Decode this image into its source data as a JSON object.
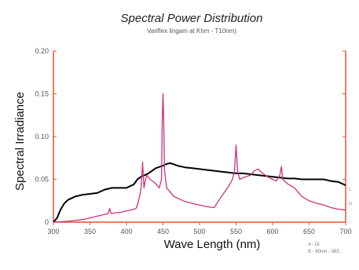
{
  "chart_data": {
    "type": "line",
    "title": "Spectral Power Distribution",
    "subtitle": "Variflex lingam at Khm - T10nm)",
    "xlabel": "Wave Length (nm)",
    "ylabel": "Spectral Irradiance",
    "xlim": [
      300,
      700
    ],
    "ylim": [
      0,
      0.2
    ],
    "x_ticks": [
      300,
      350,
      400,
      450,
      500,
      550,
      600,
      650,
      700
    ],
    "y_ticks": [
      0,
      0.05,
      0.1,
      0.15,
      0.2
    ],
    "y_tick_labels": [
      "0",
      "0.05",
      "0.10",
      "0.15",
      "0.20"
    ],
    "grid": false,
    "legend_position": "bottom-right",
    "legend_lines": [
      "A - Di",
      "B - 60nm - 365"
    ],
    "end_labels": [
      "L",
      "R"
    ],
    "colors": {
      "axes": "#e2552f",
      "series_a": "#000000",
      "series_b": "#cc3377"
    },
    "series": [
      {
        "id": "black",
        "points": [
          [
            300,
            0.0
          ],
          [
            305,
            0.005
          ],
          [
            310,
            0.015
          ],
          [
            315,
            0.022
          ],
          [
            320,
            0.026
          ],
          [
            330,
            0.03
          ],
          [
            340,
            0.032
          ],
          [
            350,
            0.033
          ],
          [
            360,
            0.034
          ],
          [
            370,
            0.038
          ],
          [
            380,
            0.04
          ],
          [
            390,
            0.04
          ],
          [
            400,
            0.04
          ],
          [
            405,
            0.042
          ],
          [
            410,
            0.044
          ],
          [
            415,
            0.05
          ],
          [
            420,
            0.053
          ],
          [
            425,
            0.055
          ],
          [
            430,
            0.057
          ],
          [
            435,
            0.06
          ],
          [
            440,
            0.063
          ],
          [
            450,
            0.066
          ],
          [
            455,
            0.068
          ],
          [
            460,
            0.069
          ],
          [
            470,
            0.066
          ],
          [
            480,
            0.064
          ],
          [
            490,
            0.063
          ],
          [
            500,
            0.062
          ],
          [
            510,
            0.061
          ],
          [
            520,
            0.06
          ],
          [
            530,
            0.059
          ],
          [
            540,
            0.058
          ],
          [
            550,
            0.057
          ],
          [
            560,
            0.057
          ],
          [
            570,
            0.056
          ],
          [
            580,
            0.055
          ],
          [
            590,
            0.054
          ],
          [
            600,
            0.053
          ],
          [
            610,
            0.052
          ],
          [
            620,
            0.051
          ],
          [
            630,
            0.051
          ],
          [
            640,
            0.05
          ],
          [
            650,
            0.05
          ],
          [
            660,
            0.05
          ],
          [
            670,
            0.05
          ],
          [
            680,
            0.048
          ],
          [
            690,
            0.047
          ],
          [
            695,
            0.045
          ],
          [
            700,
            0.043
          ]
        ]
      },
      {
        "id": "magenta",
        "points": [
          [
            300,
            0.0
          ],
          [
            320,
            0.001
          ],
          [
            340,
            0.003
          ],
          [
            350,
            0.005
          ],
          [
            360,
            0.007
          ],
          [
            370,
            0.009
          ],
          [
            375,
            0.01
          ],
          [
            377,
            0.016
          ],
          [
            379,
            0.01
          ],
          [
            385,
            0.011
          ],
          [
            390,
            0.011
          ],
          [
            395,
            0.012
          ],
          [
            400,
            0.013
          ],
          [
            405,
            0.014
          ],
          [
            410,
            0.015
          ],
          [
            413,
            0.016
          ],
          [
            415,
            0.02
          ],
          [
            418,
            0.03
          ],
          [
            420,
            0.04
          ],
          [
            422,
            0.07
          ],
          [
            424,
            0.04
          ],
          [
            426,
            0.05
          ],
          [
            428,
            0.055
          ],
          [
            432,
            0.05
          ],
          [
            436,
            0.048
          ],
          [
            440,
            0.045
          ],
          [
            445,
            0.04
          ],
          [
            448,
            0.05
          ],
          [
            449,
            0.12
          ],
          [
            450,
            0.15
          ],
          [
            451,
            0.12
          ],
          [
            452,
            0.06
          ],
          [
            455,
            0.04
          ],
          [
            460,
            0.035
          ],
          [
            465,
            0.03
          ],
          [
            470,
            0.028
          ],
          [
            480,
            0.024
          ],
          [
            490,
            0.022
          ],
          [
            500,
            0.02
          ],
          [
            510,
            0.018
          ],
          [
            520,
            0.017
          ],
          [
            530,
            0.03
          ],
          [
            540,
            0.042
          ],
          [
            545,
            0.05
          ],
          [
            548,
            0.06
          ],
          [
            550,
            0.09
          ],
          [
            552,
            0.06
          ],
          [
            555,
            0.05
          ],
          [
            560,
            0.052
          ],
          [
            570,
            0.055
          ],
          [
            575,
            0.06
          ],
          [
            580,
            0.062
          ],
          [
            585,
            0.058
          ],
          [
            590,
            0.055
          ],
          [
            595,
            0.052
          ],
          [
            600,
            0.05
          ],
          [
            605,
            0.048
          ],
          [
            610,
            0.055
          ],
          [
            612,
            0.065
          ],
          [
            614,
            0.05
          ],
          [
            620,
            0.045
          ],
          [
            630,
            0.04
          ],
          [
            640,
            0.03
          ],
          [
            650,
            0.025
          ],
          [
            660,
            0.022
          ],
          [
            670,
            0.02
          ],
          [
            680,
            0.017
          ],
          [
            690,
            0.015
          ],
          [
            700,
            0.014
          ]
        ]
      }
    ]
  }
}
